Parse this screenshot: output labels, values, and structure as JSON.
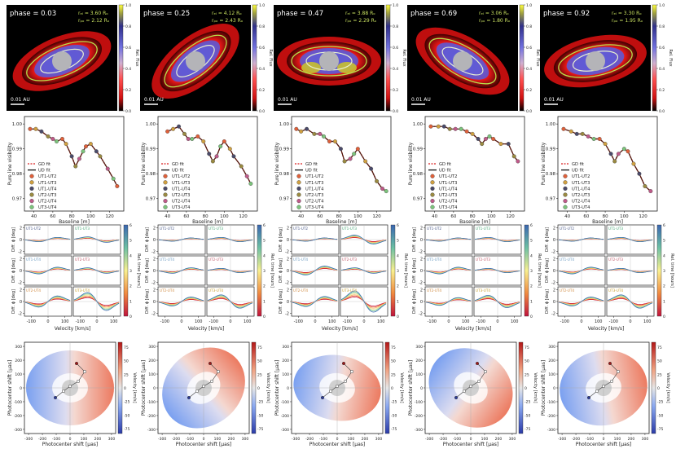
{
  "colors": {
    "disk_red": "#e01010",
    "disk_blue": "#5a5ad8",
    "star": "#b4b4b8",
    "ellipse_green": "#b8e04a",
    "ellipse_white": "#e8f0d0",
    "gd_line": "#d92020",
    "ud_line": "#111111",
    "vis_line": "#4a1a10",
    "baseline_colors": [
      "#7ec8d4",
      "#e0603a",
      "#d0a040",
      "#4a4a6a",
      "#9a8a40",
      "#c05a8a",
      "#7cc47c"
    ]
  },
  "colorbar_flux": {
    "label": "Rel. Flux",
    "ticks": [
      "0.0",
      "0.2",
      "0.4",
      "0.6",
      "0.8",
      "1.0"
    ]
  },
  "colorbar_time": {
    "label": "Rel. time [hours]",
    "ticks": [
      "0",
      "1",
      "2",
      "3",
      "4",
      "5",
      "6"
    ]
  },
  "colorbar_velocity": {
    "label": "Velocity [km/s]",
    "ticks": [
      "-75",
      "-50",
      "-25",
      "0",
      "25",
      "50",
      "75"
    ]
  },
  "columns": [
    {
      "phase": "phase = 0.03",
      "r1": "rₑₗ = 3.60 Rₒ",
      "r2": "rₚₒ = 2.12 Rₒ",
      "angle": -22,
      "scale": "0.01 AU"
    },
    {
      "phase": "phase = 0.25",
      "r1": "rₑₗ = 4.12 Rₒ",
      "r2": "rₚₒ = 2.43 Rₒ",
      "angle": -38,
      "scale": "0.01 AU"
    },
    {
      "phase": "phase = 0.47",
      "r1": "rₑₗ = 3.88 Rₒ",
      "r2": "rₚₒ = 2.29 Rₒ",
      "angle": 0,
      "scale": "0.01 AU"
    },
    {
      "phase": "phase = 0.69",
      "r1": "rₑₗ = 3.06 Rₒ",
      "r2": "rₚₒ = 1.80 Rₒ",
      "angle": 30,
      "scale": "0.01 AU"
    },
    {
      "phase": "phase = 0.92",
      "r1": "rₑₗ = 3.30 Rₒ",
      "r2": "rₚₒ = 1.95 Rₒ",
      "angle": -12,
      "scale": "0.01 AU"
    }
  ],
  "chart_data": {
    "type": "line",
    "rows": [
      {
        "name": "visibility",
        "ylabel": "Pure line visibility",
        "xlabel": "Baseline [m]",
        "xticks": [
          40,
          60,
          80,
          100,
          120
        ],
        "yticks": [
          0.97,
          0.98,
          0.99,
          1.0
        ],
        "xlim": [
          30,
          135
        ],
        "ylim": [
          0.965,
          1.003
        ],
        "legend": [
          "GD fit",
          "UD fit",
          "UT1-UT2",
          "UT1-UT3",
          "UT1-UT4",
          "UT2-UT3",
          "UT2-UT4",
          "UT3-UT4"
        ],
        "series_per_phase": [
          [
            [
              36,
              0.998
            ],
            [
              42,
              0.998
            ],
            [
              48,
              0.997
            ],
            [
              55,
              0.995
            ],
            [
              60,
              0.994
            ],
            [
              64,
              0.993
            ],
            [
              70,
              0.994
            ],
            [
              74,
              0.992
            ],
            [
              80,
              0.987
            ],
            [
              84,
              0.983
            ],
            [
              88,
              0.986
            ],
            [
              92,
              0.989
            ],
            [
              95,
              0.991
            ],
            [
              100,
              0.992
            ],
            [
              106,
              0.989
            ],
            [
              110,
              0.987
            ],
            [
              118,
              0.982
            ],
            [
              124,
              0.978
            ],
            [
              128,
              0.975
            ]
          ],
          [
            [
              40,
              0.997
            ],
            [
              46,
              0.998
            ],
            [
              52,
              0.999
            ],
            [
              58,
              0.996
            ],
            [
              62,
              0.994
            ],
            [
              66,
              0.994
            ],
            [
              72,
              0.995
            ],
            [
              78,
              0.993
            ],
            [
              84,
              0.988
            ],
            [
              88,
              0.985
            ],
            [
              92,
              0.987
            ],
            [
              96,
              0.991
            ],
            [
              100,
              0.993
            ],
            [
              106,
              0.99
            ],
            [
              110,
              0.987
            ],
            [
              118,
              0.983
            ],
            [
              124,
              0.979
            ],
            [
              128,
              0.976
            ]
          ],
          [
            [
              35,
              0.998
            ],
            [
              40,
              0.997
            ],
            [
              46,
              0.998
            ],
            [
              54,
              0.996
            ],
            [
              60,
              0.996
            ],
            [
              64,
              0.995
            ],
            [
              70,
              0.993
            ],
            [
              76,
              0.993
            ],
            [
              82,
              0.99
            ],
            [
              86,
              0.985
            ],
            [
              92,
              0.986
            ],
            [
              96,
              0.988
            ],
            [
              100,
              0.99
            ],
            [
              108,
              0.985
            ],
            [
              114,
              0.982
            ],
            [
              120,
              0.977
            ],
            [
              126,
              0.974
            ],
            [
              130,
              0.973
            ]
          ],
          [
            [
              36,
              0.999
            ],
            [
              44,
              0.999
            ],
            [
              50,
              0.999
            ],
            [
              56,
              0.998
            ],
            [
              62,
              0.998
            ],
            [
              68,
              0.998
            ],
            [
              74,
              0.997
            ],
            [
              80,
              0.996
            ],
            [
              86,
              0.994
            ],
            [
              90,
              0.992
            ],
            [
              94,
              0.994
            ],
            [
              98,
              0.995
            ],
            [
              102,
              0.994
            ],
            [
              110,
              0.992
            ],
            [
              118,
              0.992
            ],
            [
              124,
              0.987
            ],
            [
              128,
              0.985
            ]
          ],
          [
            [
              36,
              0.998
            ],
            [
              44,
              0.997
            ],
            [
              50,
              0.996
            ],
            [
              56,
              0.996
            ],
            [
              62,
              0.995
            ],
            [
              68,
              0.994
            ],
            [
              74,
              0.994
            ],
            [
              80,
              0.992
            ],
            [
              86,
              0.988
            ],
            [
              90,
              0.985
            ],
            [
              94,
              0.988
            ],
            [
              100,
              0.99
            ],
            [
              104,
              0.989
            ],
            [
              110,
              0.984
            ],
            [
              116,
              0.98
            ],
            [
              122,
              0.975
            ],
            [
              128,
              0.973
            ]
          ]
        ]
      },
      {
        "name": "differential_phase",
        "ylabel": "Diff. ϕ [deg]",
        "xlabel": "Velocity [km/s]",
        "xticks": [
          -100,
          0,
          100
        ],
        "yticks": [
          -2,
          0,
          2
        ],
        "xlim": [
          -140,
          140
        ],
        "ylim": [
          -2.5,
          2.5
        ],
        "panel_labels": [
          "UT1-UT2",
          "UT1-UT3",
          "UT1-UT4",
          "UT2-UT3",
          "UT2-UT4",
          "UT3-UT4"
        ],
        "amplitudes_per_phase": [
          [
            0.4,
            0.5,
            0.6,
            0.5,
            1.0,
            1.6
          ],
          [
            0.3,
            0.4,
            0.5,
            0.4,
            0.8,
            1.2
          ],
          [
            0.3,
            0.8,
            0.8,
            0.5,
            0.9,
            1.9
          ],
          [
            0.3,
            0.4,
            0.6,
            0.4,
            0.7,
            1.1
          ],
          [
            0.3,
            0.4,
            0.6,
            0.4,
            0.8,
            1.2
          ]
        ]
      },
      {
        "name": "photocenter",
        "ylabel": "Photocenter shift [μas]",
        "xlabel": "Photocenter shift [μas]",
        "xticks": [
          -300,
          -200,
          -100,
          0,
          100,
          200,
          300
        ],
        "yticks": [
          -300,
          -200,
          -100,
          0,
          100,
          200,
          300
        ],
        "xlim": [
          -330,
          330
        ],
        "ylim": [
          -330,
          330
        ]
      }
    ]
  },
  "tick_labels": {
    "vis_x": [
      "40",
      "60",
      "80",
      "100",
      "120"
    ],
    "vis_y": [
      "0.97",
      "0.98",
      "0.99",
      "1.00"
    ],
    "dp_x": [
      "-100",
      "0",
      "100"
    ],
    "dp_y": [
      "-2",
      "0",
      "2"
    ],
    "ph": [
      "-300",
      "-200",
      "-100",
      "0",
      "100",
      "200",
      "300"
    ]
  }
}
